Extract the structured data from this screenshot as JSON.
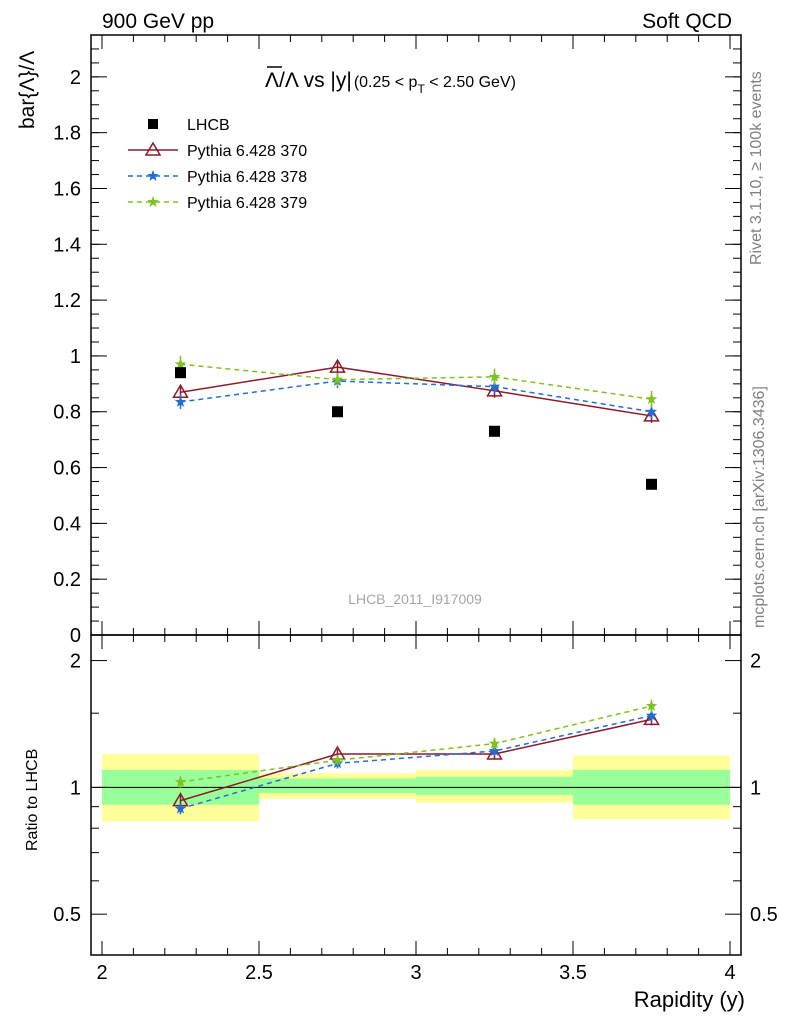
{
  "header": {
    "left": "900 GeV pp",
    "right": "Soft QCD"
  },
  "side_text": {
    "rivet": "Rivet 3.1.10, ≥ 100k events",
    "source": "mcplots.cern.ch [arXiv:1306.3436]"
  },
  "chart_data": {
    "type": "scatter",
    "title": {
      "overline_symbol": "Λ",
      "main": "/Λ vs |y|",
      "cut_open": "(0.25 < p",
      "cut_sub": "T",
      "cut_close": " < 2.50 GeV)"
    },
    "watermark": "LHCB_2011_I917009",
    "ylabel": "bar{Λ}/Λ",
    "ratio_ylabel": "Ratio to LHCB",
    "xlabel": "Rapidity (y)",
    "xlim": [
      2,
      4
    ],
    "ylim": [
      0,
      2.15
    ],
    "ratio_ylim": [
      0.4,
      2.3
    ],
    "ratio_scale": "log",
    "x_ticks": [
      "2",
      "2.5",
      "3",
      "3.5",
      "4"
    ],
    "y_ticks": [
      "0",
      "0.2",
      "0.4",
      "0.6",
      "0.8",
      "1",
      "1.2",
      "1.4",
      "1.6",
      "1.8",
      "2"
    ],
    "ratio_ticks": [
      "0.5",
      "1",
      "2"
    ],
    "x": [
      2.25,
      2.75,
      3.25,
      3.75
    ],
    "bins": [
      [
        2.0,
        2.5
      ],
      [
        2.5,
        3.0
      ],
      [
        3.0,
        3.5
      ],
      [
        3.5,
        4.0
      ]
    ],
    "legend_position": "top-left",
    "series": [
      {
        "name": "LHCB",
        "color": "#000000",
        "marker": "square",
        "values": [
          0.94,
          0.8,
          0.73,
          0.54
        ],
        "ratio": [
          1.0,
          1.0,
          1.0,
          1.0
        ],
        "band_inner": [
          [
            0.91,
            1.1
          ],
          [
            0.97,
            1.05
          ],
          [
            0.96,
            1.06
          ],
          [
            0.91,
            1.1
          ]
        ],
        "band_outer": [
          [
            0.83,
            1.2
          ],
          [
            0.94,
            1.08
          ],
          [
            0.92,
            1.1
          ],
          [
            0.84,
            1.19
          ]
        ]
      },
      {
        "name": "Pythia 6.428 370",
        "color": "#8b1a2b",
        "marker": "triangle",
        "dashed": false,
        "values": [
          0.87,
          0.96,
          0.875,
          0.785
        ],
        "errors": [
          0.025,
          0.025,
          0.025,
          0.025
        ],
        "ratio": [
          0.93,
          1.2,
          1.2,
          1.45
        ]
      },
      {
        "name": "Pythia 6.428 378",
        "color": "#1e6fd9",
        "marker": "star",
        "dashed": true,
        "values": [
          0.835,
          0.91,
          0.89,
          0.8
        ],
        "errors": [
          0.025,
          0.025,
          0.025,
          0.025
        ],
        "ratio": [
          0.89,
          1.14,
          1.22,
          1.48
        ]
      },
      {
        "name": "Pythia 6.428 379",
        "color": "#7dc21e",
        "marker": "star",
        "dashed": true,
        "values": [
          0.97,
          0.915,
          0.925,
          0.845
        ],
        "errors": [
          0.03,
          0.025,
          0.03,
          0.03
        ],
        "ratio": [
          1.03,
          1.16,
          1.27,
          1.56
        ]
      }
    ]
  }
}
